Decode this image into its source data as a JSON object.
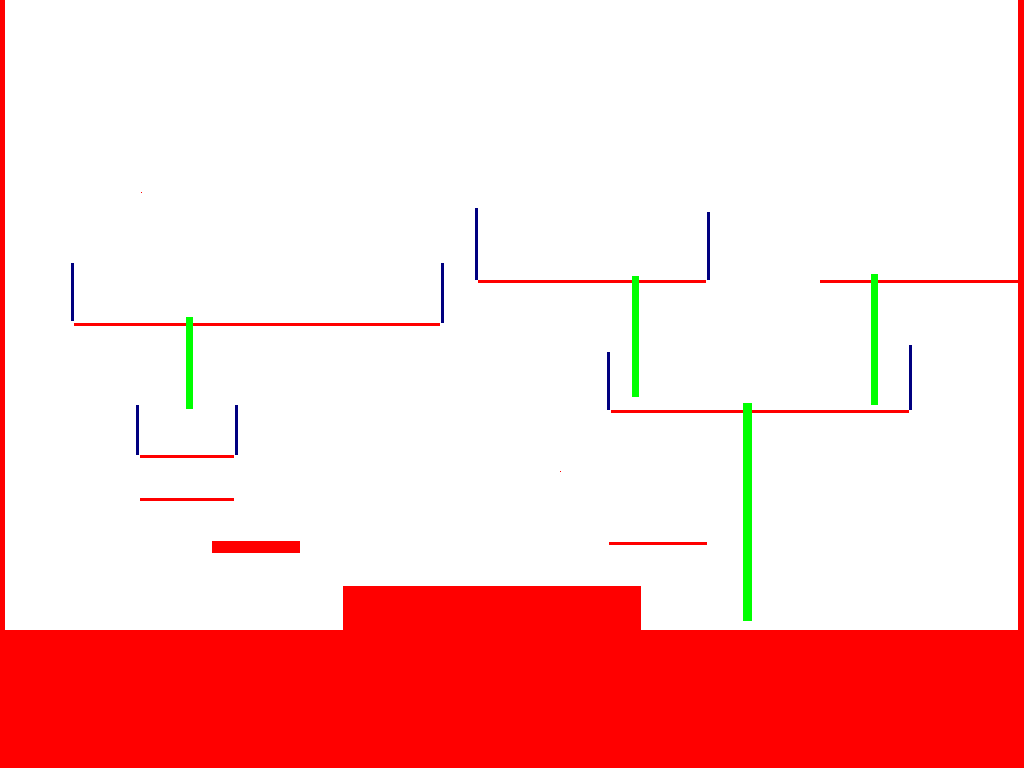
{
  "scene": {
    "background_color": "#ffffff",
    "colors": {
      "wall": "#ff0000",
      "platform": "#ff0000",
      "post": "#000080",
      "pillar": "#00ff00"
    },
    "elements": [
      "left-wall",
      "right-wall",
      "ground",
      "ground-raised-block",
      "platforms",
      "posts",
      "pillars",
      "stray-dots"
    ]
  }
}
